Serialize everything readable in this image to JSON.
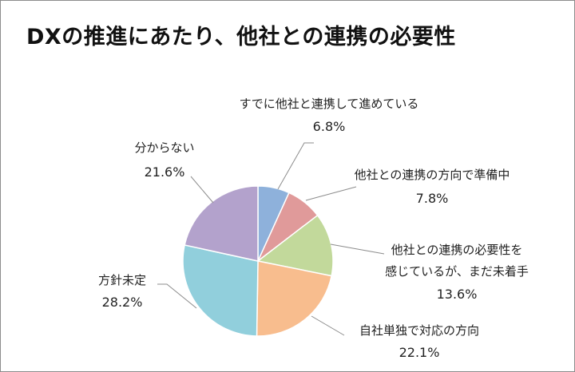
{
  "title": "DXの推進にあたり、他社との連携の必要性",
  "chart_data": {
    "type": "pie",
    "start_angle_deg": 0,
    "direction": "clockwise",
    "slices": [
      {
        "label_lines": [
          "すでに他社と連携して進めている"
        ],
        "value": 6.8,
        "value_label": "6.8%",
        "color": "#8eb1db"
      },
      {
        "label_lines": [
          "他社との連携の方向で準備中"
        ],
        "value": 7.8,
        "value_label": "7.8%",
        "color": "#e09a9a"
      },
      {
        "label_lines": [
          "他社との連携の必要性を",
          "感じているが、まだ未着手"
        ],
        "value": 13.6,
        "value_label": "13.6%",
        "color": "#c2d99b"
      },
      {
        "label_lines": [
          "自社単独で対応の方向"
        ],
        "value": 22.1,
        "value_label": "22.1%",
        "color": "#f8bd8e"
      },
      {
        "label_lines": [
          "方針未定"
        ],
        "value": 28.2,
        "value_label": "28.2%",
        "color": "#91cfdc"
      },
      {
        "label_lines": [
          "分からない"
        ],
        "value": 21.6,
        "value_label": "21.6%",
        "color": "#b3a2cc"
      }
    ]
  }
}
